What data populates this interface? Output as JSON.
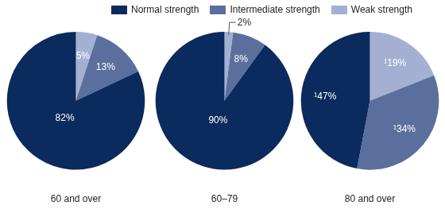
{
  "chart_data": [
    {
      "type": "pie",
      "title": "60 and over",
      "categories": [
        "Normal strength",
        "Intermediate strength",
        "Weak strength"
      ],
      "values": [
        82,
        13,
        5
      ],
      "value_labels": [
        "82%",
        "13%",
        "5%"
      ],
      "colors": [
        "#0b2a5e",
        "#5b6f9e",
        "#a4b0d2"
      ],
      "data_labels": true,
      "legend": "top"
    },
    {
      "type": "pie",
      "title": "60–79",
      "categories": [
        "Normal strength",
        "Intermediate strength",
        "Weak strength"
      ],
      "values": [
        90,
        8,
        2
      ],
      "value_labels": [
        "90%",
        "8%",
        "2%"
      ],
      "colors": [
        "#0b2a5e",
        "#5b6f9e",
        "#a4b0d2"
      ],
      "data_labels": true
    },
    {
      "type": "pie",
      "title": "80 and over",
      "categories": [
        "Normal strength",
        "Intermediate strength",
        "Weak strength"
      ],
      "values": [
        47,
        34,
        19
      ],
      "value_labels": [
        "¹47%",
        "¹34%",
        "¹19%"
      ],
      "colors": [
        "#0b2a5e",
        "#5b6f9e",
        "#a4b0d2"
      ],
      "data_labels": true
    }
  ]
}
